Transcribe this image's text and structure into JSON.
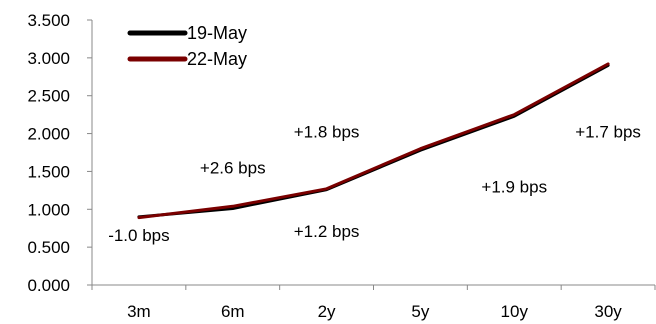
{
  "chart_data": {
    "type": "line",
    "categories": [
      "3m",
      "6m",
      "2y",
      "5y",
      "10y",
      "30y"
    ],
    "ylim": [
      0,
      3.5
    ],
    "yticks": [
      "0.000",
      "0.500",
      "1.000",
      "1.500",
      "2.000",
      "2.500",
      "3.000",
      "3.500"
    ],
    "grid": false,
    "legend_position": "top-left",
    "series": [
      {
        "name": "19-May",
        "color": "#000000",
        "values": [
          0.9,
          1.01,
          1.26,
          1.78,
          2.23,
          2.9
        ]
      },
      {
        "name": "22-May",
        "color": "#7a0000",
        "values": [
          0.89,
          1.04,
          1.27,
          1.8,
          2.25,
          2.92
        ]
      }
    ],
    "annotations": [
      {
        "text": "-1.0 bps",
        "x": "3m",
        "y": 0.66
      },
      {
        "text": "+2.6 bps",
        "x": "6m",
        "y": 1.55
      },
      {
        "text": "+1.2 bps",
        "x": "2y",
        "y": 0.71
      },
      {
        "text": "+1.8 bps",
        "x": "2y",
        "y": 2.03
      },
      {
        "text": "+1.9 bps",
        "x": "10y",
        "y": 1.3
      },
      {
        "text": "+1.7 bps",
        "x": "30y",
        "y": 2.03
      }
    ]
  }
}
